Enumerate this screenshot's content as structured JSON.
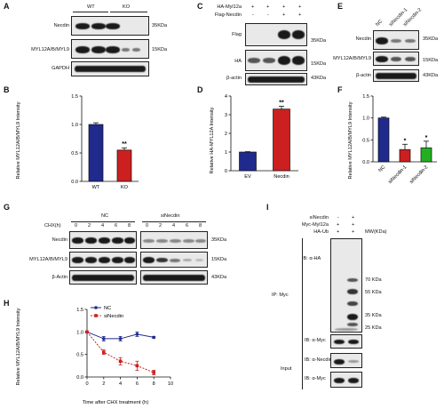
{
  "panels": {
    "A": {
      "letter": "A",
      "groups": [
        "WT",
        "KO"
      ],
      "rows": [
        {
          "label": "Necdin",
          "mw": "35KDa"
        },
        {
          "label": "MYL12A/B/MYL9",
          "mw": "15KDa"
        },
        {
          "label": "GAPDH",
          "mw": ""
        }
      ]
    },
    "B": {
      "letter": "B",
      "chart_data": {
        "type": "bar",
        "categories": [
          "WT",
          "KO"
        ],
        "values": [
          1.0,
          0.55
        ],
        "errors": [
          0.03,
          0.04
        ],
        "ylabel": "Relative MYL12A/B/MYL9 Intensity",
        "ylim": [
          0,
          1.5
        ],
        "yticks": [
          "0.0",
          "0.5",
          "1.0",
          "1.5"
        ],
        "colors": [
          "#1f2a8c",
          "#cc1f1f"
        ],
        "annotations": [
          "",
          "**"
        ]
      }
    },
    "C": {
      "letter": "C",
      "treatments": [
        {
          "label": "HA-Myl12a",
          "signs": [
            "+",
            "+",
            "+",
            "+"
          ]
        },
        {
          "label": "Flag-Necdin",
          "signs": [
            "-",
            "-",
            "+",
            "+"
          ]
        }
      ],
      "rows": [
        {
          "label": "Flag",
          "mw": "35KDa"
        },
        {
          "label": "HA",
          "mw": "15KDa"
        },
        {
          "label": "β-actin",
          "mw": "43KDa"
        }
      ]
    },
    "D": {
      "letter": "D",
      "chart_data": {
        "type": "bar",
        "categories": [
          "EV",
          "Necdin"
        ],
        "values": [
          1.0,
          3.3
        ],
        "errors": [
          0.02,
          0.15
        ],
        "ylabel": "Relative HA-MYL12A Intensity",
        "ylim": [
          0,
          4
        ],
        "yticks": [
          "0",
          "1",
          "2",
          "3",
          "4"
        ],
        "colors": [
          "#1f2a8c",
          "#cc1f1f"
        ],
        "annotations": [
          "",
          "**"
        ]
      }
    },
    "E": {
      "letter": "E",
      "lanes": [
        "NC",
        "siNecdin-1",
        "siNecdin-2"
      ],
      "rows": [
        {
          "label": "Necdin",
          "mw": "35KDa"
        },
        {
          "label": "MYL12A/B/MYL9",
          "mw": "15KDa"
        },
        {
          "label": "β-actin",
          "mw": "43KDa"
        }
      ]
    },
    "F": {
      "letter": "F",
      "chart_data": {
        "type": "bar",
        "categories": [
          "NC",
          "siNecdin-1",
          "siNecdin-2"
        ],
        "values": [
          1.0,
          0.28,
          0.32
        ],
        "errors": [
          0.02,
          0.12,
          0.15
        ],
        "ylabel": "Relative MYL12A/B/MYL9 Intensity",
        "ylim": [
          0,
          1.5
        ],
        "yticks": [
          "0.0",
          "0.5",
          "1.0",
          "1.5"
        ],
        "colors": [
          "#1f2a8c",
          "#cc1f1f",
          "#22b022"
        ],
        "annotations": [
          "",
          "*",
          "*"
        ]
      }
    },
    "G": {
      "letter": "G",
      "groups": [
        "NC",
        "siNecdin"
      ],
      "chx_label": "CHX(h)",
      "times": [
        "0",
        "2",
        "4",
        "6",
        "8",
        "0",
        "2",
        "4",
        "6",
        "8"
      ],
      "rows": [
        {
          "label": "Necdin",
          "mw": "35KDa"
        },
        {
          "label": "MYL12A/B/MYL9",
          "mw": "15KDa"
        },
        {
          "label": "β-Actin",
          "mw": "43KDa"
        }
      ]
    },
    "H": {
      "letter": "H",
      "chart_data": {
        "type": "line",
        "x": [
          0,
          2,
          4,
          6,
          8
        ],
        "series": [
          {
            "name": "NC",
            "values": [
              1.0,
              0.85,
              0.85,
              0.95,
              0.88
            ],
            "errors": [
              0,
              0.05,
              0.05,
              0.05,
              0.02
            ],
            "color": "#1f2a8c"
          },
          {
            "name": "siNecdin",
            "values": [
              1.0,
              0.55,
              0.35,
              0.25,
              0.1
            ],
            "errors": [
              0,
              0.05,
              0.08,
              0.1,
              0.05
            ],
            "color": "#cc1f1f"
          }
        ],
        "xlabel": "Time after CHX treatment (h)",
        "ylabel": "Relative MYL12A/B/MYL9 Intensity",
        "xlim": [
          0,
          10
        ],
        "ylim": [
          0,
          1.5
        ],
        "xticks": [
          "0",
          "2",
          "4",
          "6",
          "8",
          "10"
        ],
        "yticks": [
          "0.0",
          "0.5",
          "1.0",
          "1.5"
        ],
        "legend": "top-left"
      }
    },
    "I": {
      "letter": "I",
      "treatments": [
        {
          "label": "siNecdin",
          "signs": [
            "-",
            "+"
          ]
        },
        {
          "label": "Myc-Myl12a",
          "signs": [
            "+",
            "+"
          ]
        },
        {
          "label": "HA-Ub",
          "signs": [
            "+",
            "+"
          ]
        }
      ],
      "mw_header": "MW(KDa)",
      "mw_markers": [
        "70 KDa",
        "55 KDa",
        "35 KDa",
        "25 KDa"
      ],
      "ip_label": "IP: Myc",
      "input_label": "Input",
      "ib_labels": [
        "IB: α-HA",
        "IB: α-Myc",
        "IB: α-Necdin",
        "IB: α-Myc"
      ]
    }
  }
}
